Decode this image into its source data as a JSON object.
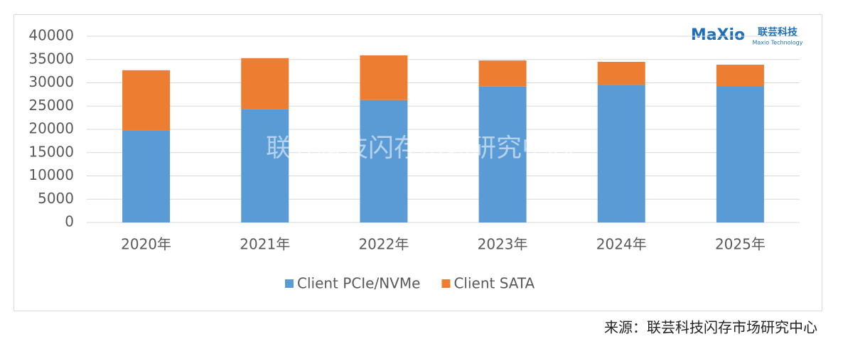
{
  "chart_data": {
    "type": "stacked_bar",
    "categories": [
      "2020年",
      "2021年",
      "2022年",
      "2023年",
      "2024年",
      "2025年"
    ],
    "series": [
      {
        "name": "Client PCIe/NVMe",
        "color": "#5b9bd5",
        "values": [
          19700,
          24400,
          26300,
          29200,
          29600,
          29300
        ]
      },
      {
        "name": "Client SATA",
        "color": "#ed7d31",
        "values": [
          13000,
          10900,
          9600,
          5600,
          4900,
          4600
        ]
      }
    ],
    "ylim": [
      0,
      40000
    ],
    "yticks": [
      0,
      5000,
      10000,
      15000,
      20000,
      25000,
      30000,
      35000,
      40000
    ],
    "grid": true,
    "legend": "bottom",
    "watermark": "联芸科技闪存市场研究中心",
    "logo": {
      "brand": "MaXio",
      "name_cn": "联芸科技",
      "name_en": "Maxio Technology"
    },
    "source": "来源：联芸科技闪存市场研究中心"
  }
}
